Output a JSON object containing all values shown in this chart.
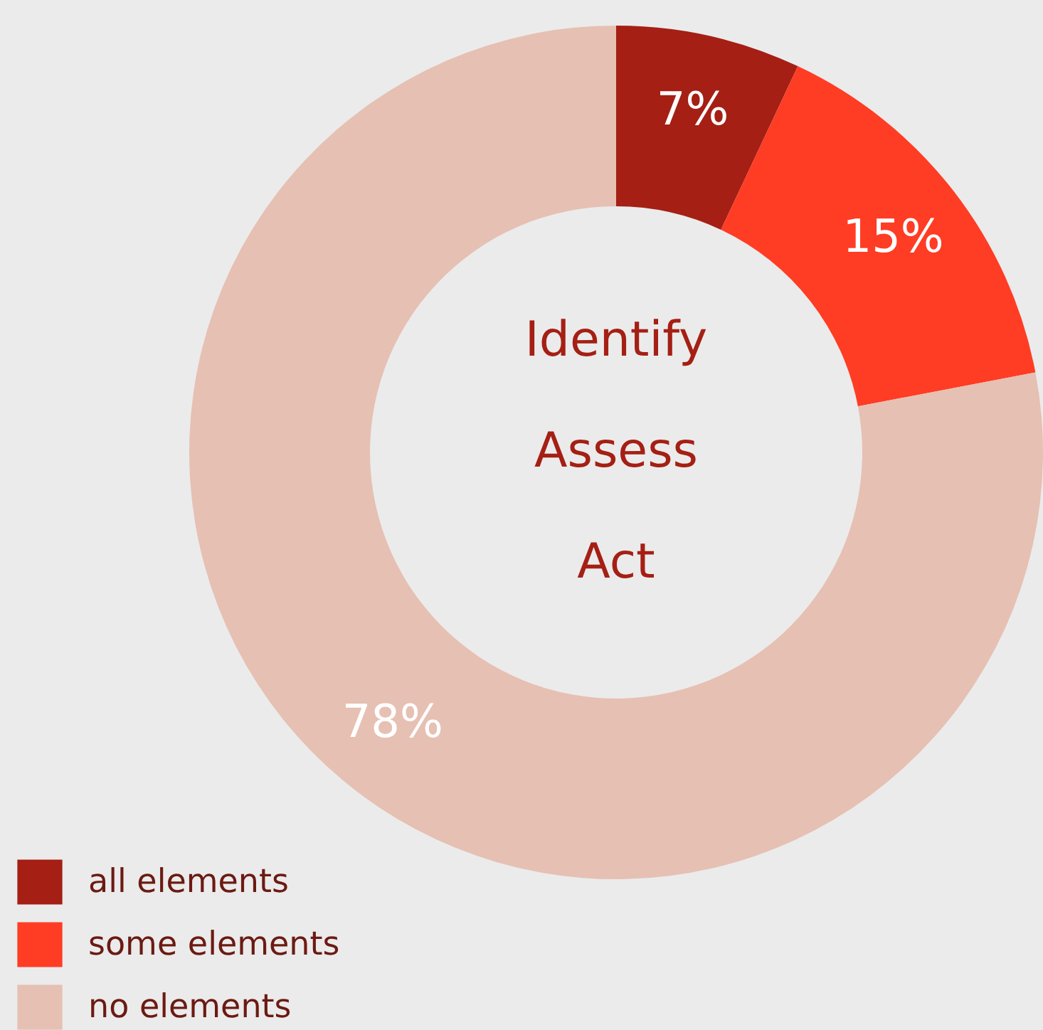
{
  "chart_data": {
    "type": "donut",
    "categories": [
      "all elements",
      "some elements",
      "no elements"
    ],
    "values": [
      7,
      15,
      78
    ],
    "colors": [
      "#a51f14",
      "#ff3c24",
      "#e6c0b3"
    ],
    "value_labels": [
      "7%",
      "15%",
      "78%"
    ],
    "annotations": [
      "Identify",
      "Assess",
      "Act"
    ],
    "legend": "bottom left"
  }
}
